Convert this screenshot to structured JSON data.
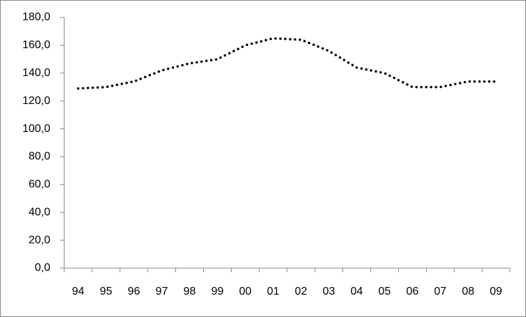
{
  "chart_data": {
    "type": "line",
    "categories": [
      "94",
      "95",
      "96",
      "97",
      "98",
      "99",
      "00",
      "01",
      "02",
      "03",
      "04",
      "05",
      "06",
      "07",
      "08",
      "09"
    ],
    "values": [
      129,
      130,
      134,
      142,
      147,
      150,
      160,
      165,
      164,
      156,
      144,
      140,
      130,
      130,
      134,
      134
    ],
    "color": "#000000",
    "ylim": [
      0,
      180
    ],
    "yticks": [
      {
        "value": 0,
        "label": "0,0"
      },
      {
        "value": 20,
        "label": "20,0"
      },
      {
        "value": 40,
        "label": "40,0"
      },
      {
        "value": 60,
        "label": "60,0"
      },
      {
        "value": 80,
        "label": "80,0"
      },
      {
        "value": 100,
        "label": "100,0"
      },
      {
        "value": 120,
        "label": "120,0"
      },
      {
        "value": 140,
        "label": "140,0"
      },
      {
        "value": 160,
        "label": "160,0"
      },
      {
        "value": 180,
        "label": "180,0"
      }
    ],
    "grid": false
  }
}
